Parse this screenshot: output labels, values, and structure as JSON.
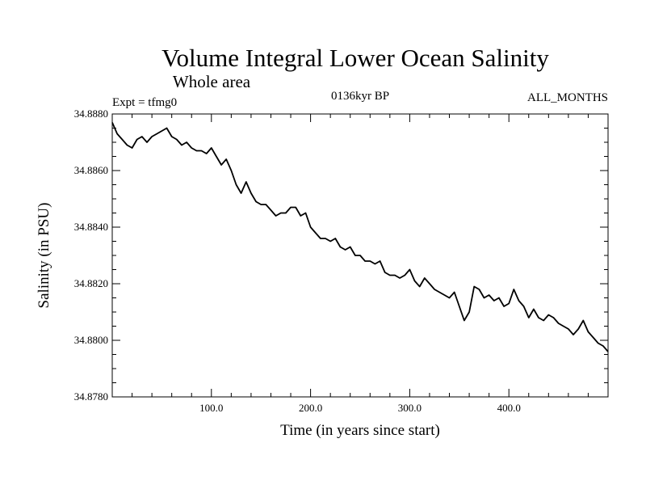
{
  "chart_data": {
    "type": "line",
    "title": "Volume Integral Lower Ocean Salinity",
    "subtitle": "Whole area",
    "left_label": "Expt = tfmg0",
    "center_label": "0136kyr BP",
    "right_label": "ALL_MONTHS",
    "xlabel": "Time (in years since start)",
    "ylabel": "Salinity (in PSU)",
    "xlim": [
      0,
      500
    ],
    "ylim": [
      34.878,
      34.888
    ],
    "x_ticks": [
      {
        "value": 100,
        "label": "100.0"
      },
      {
        "value": 200,
        "label": "200.0"
      },
      {
        "value": 300,
        "label": "300.0"
      },
      {
        "value": 400,
        "label": "400.0"
      }
    ],
    "y_ticks": [
      {
        "value": 34.878,
        "label": "34.8780"
      },
      {
        "value": 34.88,
        "label": "34.8800"
      },
      {
        "value": 34.882,
        "label": "34.8820"
      },
      {
        "value": 34.884,
        "label": "34.8840"
      },
      {
        "value": 34.886,
        "label": "34.8860"
      },
      {
        "value": 34.888,
        "label": "34.8880"
      }
    ],
    "grid": false,
    "line_color": "#000000",
    "series": [
      {
        "x": [
          0,
          5,
          10,
          15,
          20,
          25,
          30,
          35,
          40,
          45,
          50,
          55,
          60,
          65,
          70,
          75,
          80,
          85,
          90,
          95,
          100,
          105,
          110,
          115,
          120,
          125,
          130,
          135,
          140,
          145,
          150,
          155,
          160,
          165,
          170,
          175,
          180,
          185,
          190,
          195,
          200,
          205,
          210,
          215,
          220,
          225,
          230,
          235,
          240,
          245,
          250,
          255,
          260,
          265,
          270,
          275,
          280,
          285,
          290,
          295,
          300,
          305,
          310,
          315,
          320,
          325,
          330,
          335,
          340,
          345,
          350,
          355,
          360,
          365,
          370,
          375,
          380,
          385,
          390,
          395,
          400,
          405,
          410,
          415,
          420,
          425,
          430,
          435,
          440,
          445,
          450,
          455,
          460,
          465,
          470,
          475,
          480,
          485,
          490,
          495,
          500
        ],
        "y": [
          34.8877,
          34.8873,
          34.8871,
          34.8869,
          34.8868,
          34.8871,
          34.8872,
          34.887,
          34.8872,
          34.8873,
          34.8874,
          34.8875,
          34.8872,
          34.8871,
          34.8869,
          34.887,
          34.8868,
          34.8867,
          34.8867,
          34.8866,
          34.8868,
          34.8865,
          34.8862,
          34.8864,
          34.886,
          34.8855,
          34.8852,
          34.8856,
          34.8852,
          34.8849,
          34.8848,
          34.8848,
          34.8846,
          34.8844,
          34.8845,
          34.8845,
          34.8847,
          34.8847,
          34.8844,
          34.8845,
          34.884,
          34.8838,
          34.8836,
          34.8836,
          34.8835,
          34.8836,
          34.8833,
          34.8832,
          34.8833,
          34.883,
          34.883,
          34.8828,
          34.8828,
          34.8827,
          34.8828,
          34.8824,
          34.8823,
          34.8823,
          34.8822,
          34.8823,
          34.8825,
          34.8821,
          34.8819,
          34.8822,
          34.882,
          34.8818,
          34.8817,
          34.8816,
          34.8815,
          34.8817,
          34.8812,
          34.8807,
          34.881,
          34.8819,
          34.8818,
          34.8815,
          34.8816,
          34.8814,
          34.8815,
          34.8812,
          34.8813,
          34.8818,
          34.8814,
          34.8812,
          34.8808,
          34.8811,
          34.8808,
          34.8807,
          34.8809,
          34.8808,
          34.8806,
          34.8805,
          34.8804,
          34.8802,
          34.8804,
          34.8807,
          34.8803,
          34.8801,
          34.8799,
          34.8798,
          34.8796
        ]
      }
    ]
  }
}
